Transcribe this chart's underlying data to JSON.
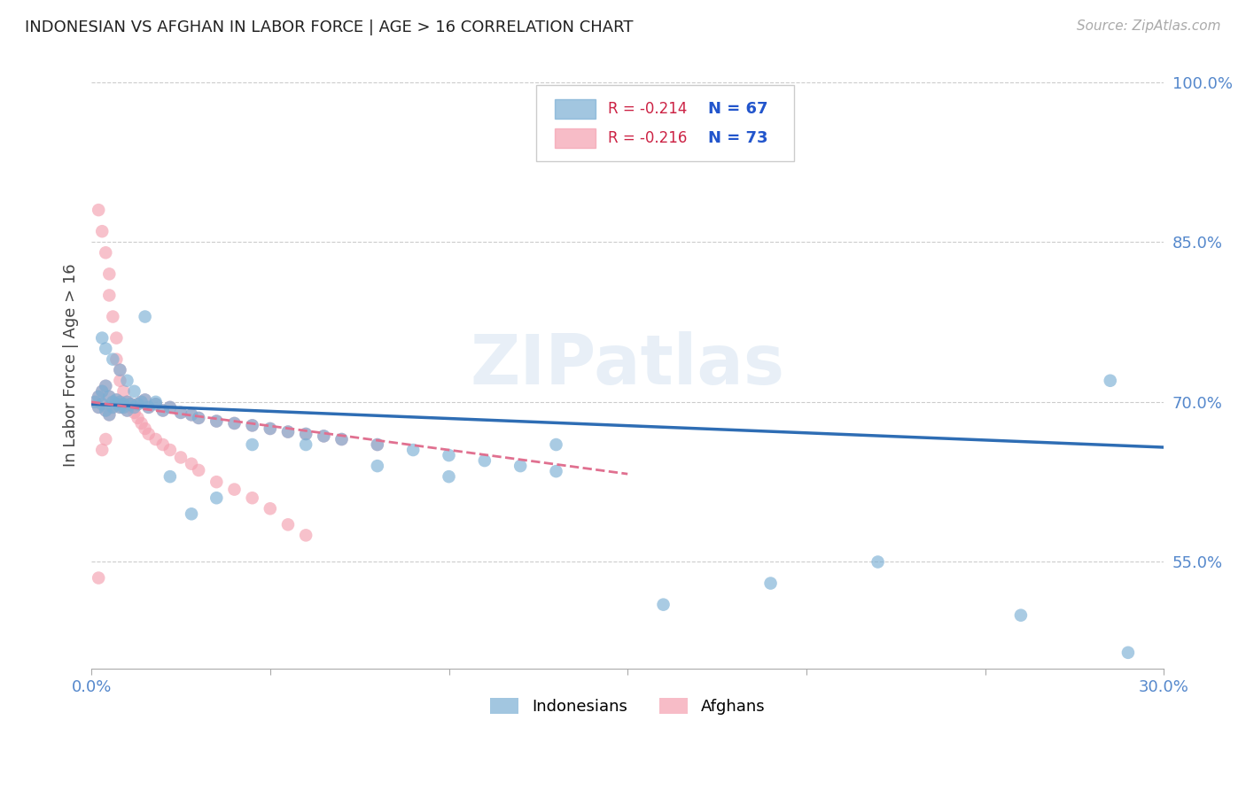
{
  "title": "INDONESIAN VS AFGHAN IN LABOR FORCE | AGE > 16 CORRELATION CHART",
  "source": "Source: ZipAtlas.com",
  "ylabel": "In Labor Force | Age > 16",
  "xlim": [
    0.0,
    0.3
  ],
  "ylim": [
    0.45,
    1.02
  ],
  "yticks": [
    0.55,
    0.7,
    0.85,
    1.0
  ],
  "ytick_labels": [
    "55.0%",
    "70.0%",
    "85.0%",
    "100.0%"
  ],
  "indonesian_color": "#7bafd4",
  "afghan_color": "#f4a0b0",
  "trend_indonesian_color": "#2e6db4",
  "trend_afghan_color": "#e07090",
  "legend_r_indonesian": "R = -0.214",
  "legend_n_indonesian": "N = 67",
  "legend_r_afghan": "R = -0.216",
  "legend_n_afghan": "N = 73",
  "watermark": "ZIPatlas",
  "indonesian_x": [
    0.001,
    0.002,
    0.002,
    0.003,
    0.003,
    0.004,
    0.004,
    0.005,
    0.005,
    0.006,
    0.006,
    0.007,
    0.007,
    0.008,
    0.008,
    0.009,
    0.009,
    0.01,
    0.01,
    0.011,
    0.012,
    0.013,
    0.014,
    0.015,
    0.016,
    0.018,
    0.02,
    0.022,
    0.025,
    0.028,
    0.03,
    0.035,
    0.04,
    0.045,
    0.05,
    0.055,
    0.06,
    0.065,
    0.07,
    0.08,
    0.09,
    0.1,
    0.11,
    0.12,
    0.13,
    0.003,
    0.004,
    0.006,
    0.008,
    0.01,
    0.012,
    0.015,
    0.018,
    0.022,
    0.028,
    0.035,
    0.045,
    0.06,
    0.08,
    0.1,
    0.13,
    0.16,
    0.19,
    0.22,
    0.26,
    0.285,
    0.29
  ],
  "indonesian_y": [
    0.7,
    0.695,
    0.705,
    0.698,
    0.71,
    0.692,
    0.715,
    0.688,
    0.705,
    0.7,
    0.695,
    0.698,
    0.702,
    0.695,
    0.7,
    0.698,
    0.695,
    0.7,
    0.692,
    0.698,
    0.695,
    0.698,
    0.7,
    0.702,
    0.695,
    0.698,
    0.692,
    0.695,
    0.69,
    0.688,
    0.685,
    0.682,
    0.68,
    0.678,
    0.675,
    0.672,
    0.67,
    0.668,
    0.665,
    0.66,
    0.655,
    0.65,
    0.645,
    0.64,
    0.635,
    0.76,
    0.75,
    0.74,
    0.73,
    0.72,
    0.71,
    0.78,
    0.7,
    0.63,
    0.595,
    0.61,
    0.66,
    0.66,
    0.64,
    0.63,
    0.66,
    0.51,
    0.53,
    0.55,
    0.5,
    0.72,
    0.465
  ],
  "afghan_x": [
    0.001,
    0.002,
    0.002,
    0.003,
    0.003,
    0.004,
    0.004,
    0.005,
    0.005,
    0.006,
    0.006,
    0.007,
    0.007,
    0.008,
    0.008,
    0.009,
    0.009,
    0.01,
    0.01,
    0.011,
    0.012,
    0.013,
    0.014,
    0.015,
    0.016,
    0.018,
    0.02,
    0.022,
    0.025,
    0.028,
    0.03,
    0.035,
    0.04,
    0.045,
    0.05,
    0.055,
    0.06,
    0.065,
    0.07,
    0.08,
    0.002,
    0.003,
    0.004,
    0.005,
    0.005,
    0.006,
    0.007,
    0.007,
    0.008,
    0.008,
    0.009,
    0.01,
    0.011,
    0.012,
    0.013,
    0.014,
    0.015,
    0.016,
    0.018,
    0.02,
    0.022,
    0.025,
    0.028,
    0.03,
    0.035,
    0.04,
    0.045,
    0.05,
    0.055,
    0.06,
    0.002,
    0.003,
    0.004
  ],
  "afghan_y": [
    0.7,
    0.695,
    0.705,
    0.698,
    0.71,
    0.692,
    0.715,
    0.688,
    0.705,
    0.7,
    0.695,
    0.698,
    0.702,
    0.695,
    0.7,
    0.698,
    0.695,
    0.7,
    0.692,
    0.698,
    0.695,
    0.698,
    0.7,
    0.702,
    0.695,
    0.698,
    0.692,
    0.695,
    0.69,
    0.688,
    0.685,
    0.682,
    0.68,
    0.678,
    0.675,
    0.672,
    0.67,
    0.668,
    0.665,
    0.66,
    0.88,
    0.86,
    0.84,
    0.82,
    0.8,
    0.78,
    0.76,
    0.74,
    0.73,
    0.72,
    0.71,
    0.7,
    0.695,
    0.69,
    0.685,
    0.68,
    0.675,
    0.67,
    0.665,
    0.66,
    0.655,
    0.648,
    0.642,
    0.636,
    0.625,
    0.618,
    0.61,
    0.6,
    0.585,
    0.575,
    0.535,
    0.655,
    0.665
  ]
}
